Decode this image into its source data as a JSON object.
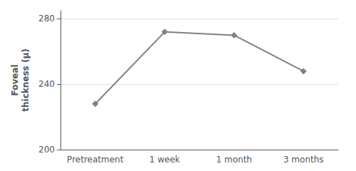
{
  "chart_data": {
    "type": "line",
    "categories": [
      "Pretreatment",
      "1 week",
      "1 month",
      "3 months"
    ],
    "values": [
      228,
      272,
      270,
      248
    ],
    "color": "#808080",
    "marker": "diamond",
    "ylabel": "Foveal\nthickness (µ)",
    "ylim": [
      200,
      285
    ],
    "yticks": [
      200,
      240,
      280
    ],
    "grid": true
  }
}
